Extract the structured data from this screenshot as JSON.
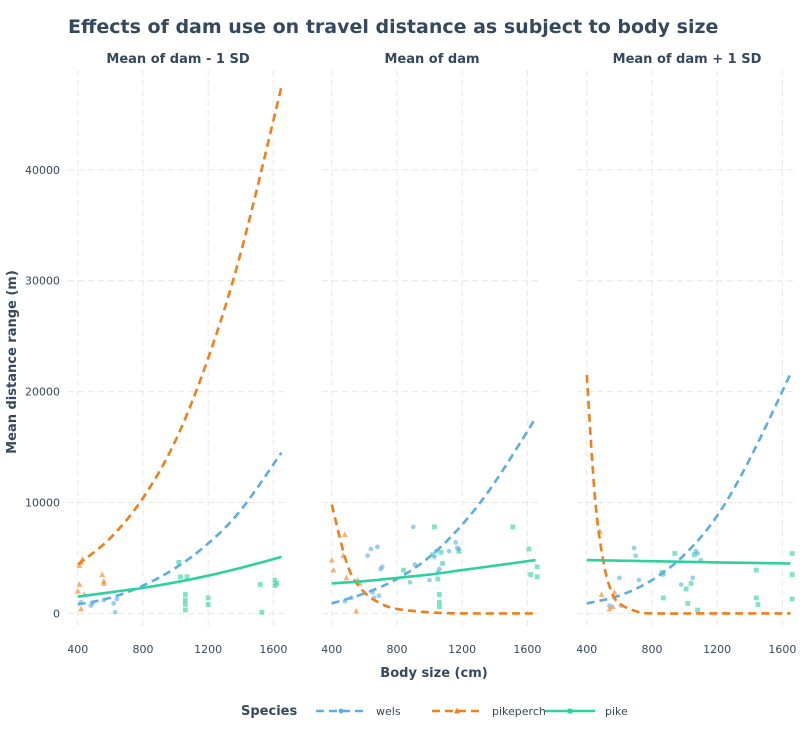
{
  "chart_data": {
    "type": "line",
    "title": "Effects of dam use on travel distance as subject to body size",
    "xlabel": "Body size (cm)",
    "ylabel": "Mean distance range (m)",
    "xlim": [
      340,
      1690
    ],
    "ylim": [
      -1500,
      49000
    ],
    "xticks": [
      400,
      800,
      1200,
      1600
    ],
    "yticks": [
      0,
      10000,
      20000,
      30000,
      40000
    ],
    "grid": true,
    "legend": {
      "title": "Species",
      "position": "bottom",
      "entries": [
        "wels",
        "pikeperch",
        "pike"
      ]
    },
    "colors": {
      "wels": "#5dade2",
      "pikeperch": "#ef7f1a",
      "pike": "#2ed19d"
    },
    "panels": [
      {
        "label": "Mean of dam - 1 SD",
        "series": [
          {
            "name": "wels",
            "style": "dashed",
            "x": [
              400,
              600,
              800,
              1000,
              1200,
              1400,
              1650
            ],
            "y": [
              800,
              1400,
              2500,
              4100,
              6300,
              9300,
              14500
            ]
          },
          {
            "name": "pikeperch",
            "style": "dashed",
            "x": [
              400,
              600,
              800,
              1000,
              1200,
              1400,
              1650
            ],
            "y": [
              4400,
              6800,
              10400,
              15600,
              23000,
              32500,
              47500
            ]
          },
          {
            "name": "pike",
            "style": "solid",
            "x": [
              400,
              600,
              800,
              1000,
              1200,
              1400,
              1650
            ],
            "y": [
              1500,
              1900,
              2300,
              2800,
              3400,
              4100,
              5100
            ]
          }
        ],
        "points": {
          "wels": [
            [
              420,
              1000
            ],
            [
              480,
              700
            ],
            [
              490,
              900
            ],
            [
              560,
              1200
            ],
            [
              620,
              900
            ],
            [
              630,
              100
            ],
            [
              640,
              1300
            ]
          ],
          "pikeperch": [
            [
              400,
              2000
            ],
            [
              410,
              4300
            ],
            [
              410,
              2600
            ],
            [
              420,
              4600
            ],
            [
              420,
              400
            ],
            [
              430,
              4900
            ],
            [
              440,
              1700
            ],
            [
              550,
              3500
            ],
            [
              560,
              2700
            ],
            [
              560,
              2900
            ]
          ],
          "pike": [
            [
              1020,
              4600
            ],
            [
              1030,
              3300
            ],
            [
              1060,
              1700
            ],
            [
              1060,
              1200
            ],
            [
              1060,
              800
            ],
            [
              1060,
              300
            ],
            [
              1070,
              3300
            ],
            [
              1200,
              1400
            ],
            [
              1200,
              800
            ],
            [
              1520,
              2600
            ],
            [
              1530,
              100
            ],
            [
              1610,
              3000
            ],
            [
              1610,
              2500
            ],
            [
              1620,
              2700
            ]
          ]
        }
      },
      {
        "label": "Mean of dam",
        "series": [
          {
            "name": "wels",
            "style": "dashed",
            "x": [
              400,
              600,
              800,
              1000,
              1200,
              1400,
              1650
            ],
            "y": [
              900,
              1800,
              3100,
              5100,
              8000,
              11800,
              17600
            ]
          },
          {
            "name": "pikeperch",
            "style": "dashed",
            "x": [
              400,
              500,
              600,
              700,
              800,
              1000,
              1200,
              1650
            ],
            "y": [
              9800,
              4200,
              1900,
              900,
              400,
              100,
              0,
              0
            ]
          },
          {
            "name": "pike",
            "style": "solid",
            "x": [
              400,
              600,
              800,
              1000,
              1200,
              1400,
              1650
            ],
            "y": [
              2700,
              2900,
              3200,
              3500,
              3900,
              4300,
              4800
            ]
          }
        ],
        "points": {
          "wels": [
            [
              480,
              1100
            ],
            [
              520,
              1400
            ],
            [
              620,
              5200
            ],
            [
              640,
              5800
            ],
            [
              650,
              1900
            ],
            [
              660,
              1400
            ],
            [
              680,
              6000
            ],
            [
              690,
              1600
            ],
            [
              700,
              4000
            ],
            [
              710,
              4200
            ],
            [
              880,
              2800
            ],
            [
              900,
              7800
            ],
            [
              910,
              4400
            ],
            [
              1000,
              3000
            ],
            [
              1030,
              5100
            ],
            [
              1040,
              5600
            ],
            [
              1050,
              3700
            ],
            [
              1060,
              4000
            ],
            [
              1120,
              5600
            ],
            [
              1160,
              6400
            ],
            [
              1170,
              5900
            ],
            [
              1180,
              5800
            ]
          ],
          "pikeperch": [
            [
              400,
              4800
            ],
            [
              410,
              3900
            ],
            [
              470,
              5200
            ],
            [
              480,
              7100
            ],
            [
              490,
              3200
            ],
            [
              550,
              200
            ],
            [
              560,
              3000
            ],
            [
              570,
              2700
            ]
          ],
          "pike": [
            [
              840,
              3900
            ],
            [
              1020,
              5300
            ],
            [
              1030,
              7800
            ],
            [
              1050,
              3100
            ],
            [
              1060,
              1700
            ],
            [
              1060,
              1000
            ],
            [
              1060,
              600
            ],
            [
              1070,
              5500
            ],
            [
              1080,
              4500
            ],
            [
              1180,
              5600
            ],
            [
              1510,
              7800
            ],
            [
              1610,
              5800
            ],
            [
              1620,
              3500
            ],
            [
              1660,
              4200
            ],
            [
              1660,
              3300
            ]
          ]
        }
      },
      {
        "label": "Mean of dam + 1 SD",
        "series": [
          {
            "name": "wels",
            "style": "dashed",
            "x": [
              400,
              600,
              800,
              1000,
              1200,
              1400,
              1650
            ],
            "y": [
              900,
              1600,
              3000,
              5300,
              8800,
              13900,
              21600
            ]
          },
          {
            "name": "pikeperch",
            "style": "dashed",
            "x": [
              400,
              450,
              500,
              550,
              600,
              700,
              800,
              1200,
              1650
            ],
            "y": [
              21500,
              10500,
              4800,
              2000,
              900,
              200,
              0,
              0,
              0
            ]
          },
          {
            "name": "pike",
            "style": "solid",
            "x": [
              400,
              800,
              1200,
              1650
            ],
            "y": [
              4800,
              4700,
              4600,
              4500
            ]
          }
        ],
        "points": {
          "wels": [
            [
              540,
              700
            ],
            [
              600,
              3200
            ],
            [
              610,
              700
            ],
            [
              690,
              5900
            ],
            [
              700,
              5200
            ],
            [
              720,
              3000
            ],
            [
              870,
              3500
            ],
            [
              980,
              2600
            ],
            [
              1050,
              3200
            ],
            [
              1070,
              5600
            ],
            [
              1080,
              5400
            ],
            [
              1100,
              4800
            ]
          ],
          "pikeperch": [
            [
              480,
              7400
            ],
            [
              490,
              1700
            ],
            [
              540,
              400
            ],
            [
              560,
              600
            ],
            [
              570,
              1900
            ]
          ],
          "pike": [
            [
              860,
              3700
            ],
            [
              870,
              1400
            ],
            [
              940,
              5400
            ],
            [
              1010,
              2200
            ],
            [
              1020,
              900
            ],
            [
              1040,
              2700
            ],
            [
              1060,
              5300
            ],
            [
              1080,
              300
            ],
            [
              1440,
              3900
            ],
            [
              1440,
              1400
            ],
            [
              1450,
              800
            ],
            [
              1660,
              5400
            ],
            [
              1660,
              3500
            ],
            [
              1660,
              1300
            ]
          ]
        }
      }
    ]
  }
}
